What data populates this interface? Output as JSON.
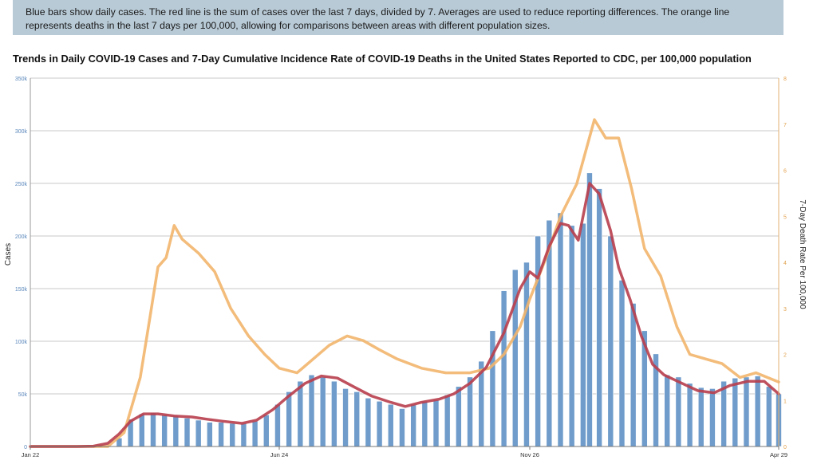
{
  "info_text": "Blue bars show daily cases. The red line is the sum of cases over the last 7 days, divided by 7. Averages are used to reduce reporting differences. The orange line represents deaths in the last 7 days per 100,000, allowing for comparisons between areas with different population sizes.",
  "chart_data": {
    "type": "bar",
    "title": "Trends in Daily COVID-19 Cases and 7-Day Cumulative Incidence Rate of COVID-19 Deaths in the United States Reported to CDC, per 100,000 population",
    "ylabel": "Cases",
    "y2label": "7-Day Death Rate Per 100,000",
    "ylim": [
      0,
      350000
    ],
    "y2lim": [
      0,
      8
    ],
    "yticks": [
      "0",
      "50k",
      "100k",
      "150k",
      "200k",
      "250k",
      "300k",
      "350k"
    ],
    "y2ticks": [
      "0",
      "1",
      "2",
      "3",
      "4",
      "5",
      "6",
      "7",
      "8"
    ],
    "xtick_labels": [
      "Jan 22",
      "Jun 24",
      "Nov 26",
      "Apr 29"
    ],
    "xtick_dates": [
      "2020-01-22",
      "2020-06-24",
      "2020-11-26",
      "2021-04-29"
    ],
    "grid": true,
    "series": [
      {
        "kind": "bars",
        "color": "#6f9ccb",
        "x": [
          "2020-01-22",
          "2020-02-15",
          "2020-03-01",
          "2020-03-10",
          "2020-03-17",
          "2020-03-24",
          "2020-03-31",
          "2020-04-07",
          "2020-04-14",
          "2020-04-21",
          "2020-04-28",
          "2020-05-05",
          "2020-05-12",
          "2020-05-19",
          "2020-05-26",
          "2020-06-02",
          "2020-06-09",
          "2020-06-16",
          "2020-06-23",
          "2020-06-30",
          "2020-07-07",
          "2020-07-14",
          "2020-07-21",
          "2020-07-28",
          "2020-08-04",
          "2020-08-11",
          "2020-08-18",
          "2020-08-25",
          "2020-09-01",
          "2020-09-08",
          "2020-09-15",
          "2020-09-22",
          "2020-09-29",
          "2020-10-06",
          "2020-10-13",
          "2020-10-20",
          "2020-10-27",
          "2020-11-03",
          "2020-11-10",
          "2020-11-17",
          "2020-11-24",
          "2020-12-01",
          "2020-12-08",
          "2020-12-15",
          "2020-12-22",
          "2020-12-29",
          "2021-01-02",
          "2021-01-08",
          "2021-01-15",
          "2021-01-22",
          "2021-01-29",
          "2021-02-05",
          "2021-02-12",
          "2021-02-19",
          "2021-02-26",
          "2021-03-05",
          "2021-03-12",
          "2021-03-19",
          "2021-03-26",
          "2021-04-02",
          "2021-04-09",
          "2021-04-16",
          "2021-04-23",
          "2021-04-29"
        ],
        "values": [
          0,
          0,
          20,
          600,
          8000,
          26000,
          31000,
          32000,
          30000,
          29000,
          27000,
          25000,
          23000,
          23000,
          22000,
          22000,
          24000,
          30000,
          40000,
          52000,
          62000,
          68000,
          66000,
          62000,
          55000,
          52000,
          46000,
          43000,
          40000,
          36000,
          40000,
          43000,
          44000,
          49000,
          57000,
          66000,
          81000,
          110000,
          148000,
          168000,
          175000,
          200000,
          215000,
          222000,
          210000,
          212000,
          260000,
          245000,
          200000,
          158000,
          136000,
          110000,
          88000,
          68000,
          66000,
          60000,
          56000,
          55000,
          62000,
          65000,
          66000,
          67000,
          57000,
          50000
        ]
      },
      {
        "kind": "line",
        "color": "#b83e4d",
        "x": [
          "2020-01-22",
          "2020-02-20",
          "2020-03-01",
          "2020-03-10",
          "2020-03-17",
          "2020-03-24",
          "2020-04-01",
          "2020-04-10",
          "2020-04-20",
          "2020-05-01",
          "2020-05-10",
          "2020-05-20",
          "2020-06-01",
          "2020-06-10",
          "2020-06-20",
          "2020-06-30",
          "2020-07-10",
          "2020-07-20",
          "2020-07-30",
          "2020-08-10",
          "2020-08-20",
          "2020-09-01",
          "2020-09-10",
          "2020-09-20",
          "2020-10-01",
          "2020-10-10",
          "2020-10-20",
          "2020-10-30",
          "2020-11-10",
          "2020-11-20",
          "2020-11-26",
          "2020-12-01",
          "2020-12-08",
          "2020-12-15",
          "2020-12-20",
          "2020-12-26",
          "2021-01-02",
          "2021-01-08",
          "2021-01-15",
          "2021-01-20",
          "2021-01-27",
          "2021-02-03",
          "2021-02-10",
          "2021-02-17",
          "2021-02-24",
          "2021-03-03",
          "2021-03-10",
          "2021-03-20",
          "2021-03-30",
          "2021-04-10",
          "2021-04-20",
          "2021-04-29"
        ],
        "values": [
          0,
          0,
          300,
          3000,
          12000,
          24000,
          31000,
          31000,
          29000,
          28000,
          26000,
          24000,
          22000,
          25000,
          35000,
          48000,
          60000,
          67000,
          65000,
          56000,
          48000,
          42000,
          38000,
          42000,
          45000,
          50000,
          60000,
          75000,
          108000,
          150000,
          166000,
          160000,
          190000,
          212000,
          210000,
          196000,
          250000,
          240000,
          205000,
          170000,
          140000,
          105000,
          78000,
          68000,
          63000,
          58000,
          53000,
          51000,
          58000,
          62000,
          62000,
          50000
        ]
      },
      {
        "kind": "line",
        "color": "#f2b56b",
        "x": [
          "2020-01-22",
          "2020-03-10",
          "2020-03-20",
          "2020-03-30",
          "2020-04-05",
          "2020-04-10",
          "2020-04-15",
          "2020-04-20",
          "2020-04-25",
          "2020-05-05",
          "2020-05-15",
          "2020-05-25",
          "2020-06-05",
          "2020-06-15",
          "2020-06-24",
          "2020-07-05",
          "2020-07-15",
          "2020-07-25",
          "2020-08-05",
          "2020-08-15",
          "2020-08-25",
          "2020-09-05",
          "2020-09-20",
          "2020-10-05",
          "2020-10-20",
          "2020-11-01",
          "2020-11-10",
          "2020-11-20",
          "2020-11-26",
          "2020-12-05",
          "2020-12-15",
          "2020-12-25",
          "2021-01-05",
          "2021-01-12",
          "2021-01-20",
          "2021-01-28",
          "2021-02-05",
          "2021-02-15",
          "2021-02-25",
          "2021-03-05",
          "2021-03-15",
          "2021-03-25",
          "2021-04-05",
          "2021-04-15",
          "2021-04-29"
        ],
        "values": [
          0,
          0,
          0.3,
          1.5,
          2.8,
          3.9,
          4.1,
          4.8,
          4.5,
          4.2,
          3.8,
          3.0,
          2.4,
          2.0,
          1.7,
          1.6,
          1.9,
          2.2,
          2.4,
          2.3,
          2.1,
          1.9,
          1.7,
          1.6,
          1.6,
          1.7,
          2.0,
          2.6,
          3.2,
          4.0,
          5.0,
          5.7,
          7.1,
          6.7,
          6.7,
          5.6,
          4.3,
          3.7,
          2.6,
          2.0,
          1.9,
          1.8,
          1.5,
          1.6,
          1.4
        ]
      }
    ]
  }
}
